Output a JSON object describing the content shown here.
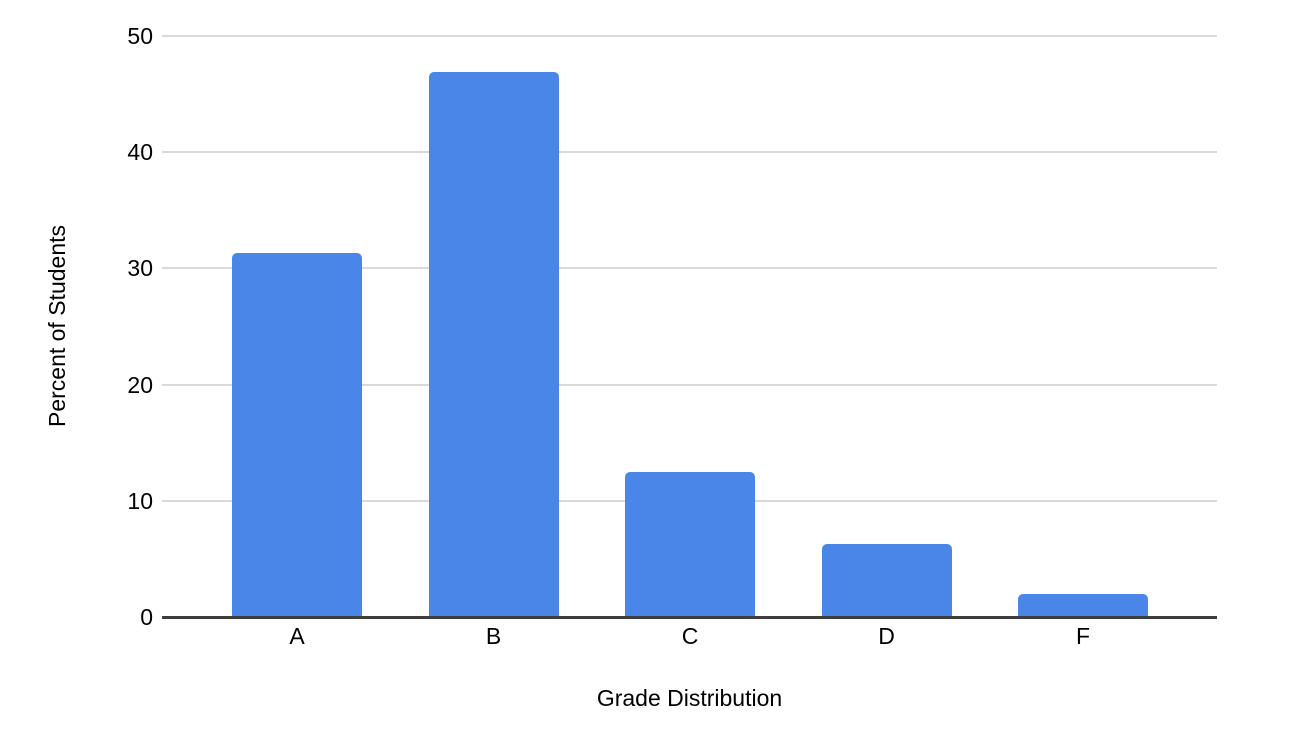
{
  "chart_data": {
    "type": "bar",
    "categories": [
      "A",
      "B",
      "C",
      "D",
      "F"
    ],
    "values": [
      31.3,
      46.9,
      12.5,
      6.3,
      2.0
    ],
    "title": "",
    "xlabel": "Grade Distribution",
    "ylabel": "Percent of Students",
    "ylim": [
      0,
      50
    ],
    "yticks": [
      0,
      10,
      20,
      30,
      40,
      50
    ],
    "grid": true,
    "legend": "none",
    "colors": {
      "bar": "#4a86e8",
      "gridline": "#d9d9d9",
      "baseline": "#3d3d3d",
      "text": "#000000",
      "background": "#ffffff"
    }
  }
}
